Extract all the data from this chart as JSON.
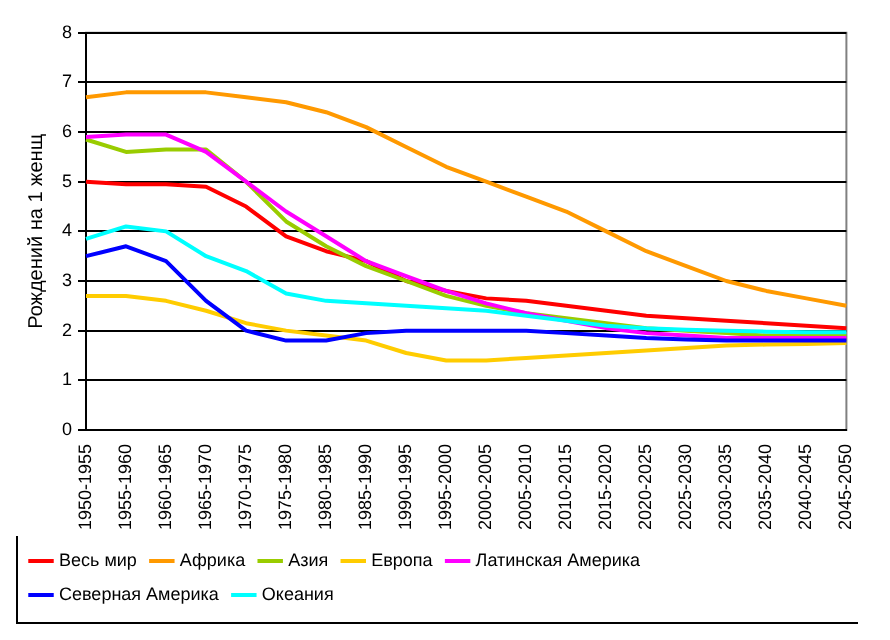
{
  "chart_data": {
    "type": "line",
    "ylabel": "Рождений на 1 женщ",
    "categories": [
      "1950-1955",
      "1955-1960",
      "1960-1965",
      "1965-1970",
      "1970-1975",
      "1975-1980",
      "1980-1985",
      "1985-1990",
      "1990-1995",
      "1995-2000",
      "2000-2005",
      "2005-2010",
      "2010-2015",
      "2015-2020",
      "2020-2025",
      "2025-2030",
      "2030-2035",
      "2035-2040",
      "2040-2045",
      "2045-2050"
    ],
    "series": [
      {
        "name": "Весь мир",
        "color": "#ff0000",
        "values": [
          5.0,
          4.95,
          4.95,
          4.9,
          4.5,
          3.9,
          3.6,
          3.4,
          3.0,
          2.8,
          2.65,
          2.6,
          2.5,
          2.4,
          2.3,
          2.25,
          2.2,
          2.15,
          2.1,
          2.05
        ]
      },
      {
        "name": "Африка",
        "color": "#ff9900",
        "values": [
          6.7,
          6.8,
          6.8,
          6.8,
          6.7,
          6.6,
          6.4,
          6.1,
          5.7,
          5.3,
          5.0,
          4.7,
          4.4,
          4.0,
          3.6,
          3.3,
          3.0,
          2.8,
          2.65,
          2.5
        ]
      },
      {
        "name": "Азия",
        "color": "#99cc00",
        "values": [
          5.85,
          5.6,
          5.65,
          5.65,
          5.0,
          4.2,
          3.7,
          3.3,
          3.0,
          2.7,
          2.5,
          2.35,
          2.25,
          2.15,
          2.05,
          2.0,
          1.95,
          1.9,
          1.9,
          1.9
        ]
      },
      {
        "name": "Европа",
        "color": "#ffcc00",
        "values": [
          2.7,
          2.7,
          2.6,
          2.4,
          2.15,
          2.0,
          1.9,
          1.8,
          1.55,
          1.4,
          1.4,
          1.45,
          1.5,
          1.55,
          1.6,
          1.65,
          1.7,
          1.72,
          1.73,
          1.75
        ]
      },
      {
        "name": "Латинская Америка",
        "color": "#ff00ff",
        "values": [
          5.9,
          5.95,
          5.95,
          5.6,
          5.0,
          4.4,
          3.9,
          3.4,
          3.1,
          2.8,
          2.55,
          2.35,
          2.2,
          2.05,
          1.95,
          1.9,
          1.85,
          1.85,
          1.85,
          1.85
        ]
      },
      {
        "name": "Северная Америка",
        "color": "#0000ff",
        "values": [
          3.5,
          3.7,
          3.4,
          2.6,
          2.0,
          1.8,
          1.8,
          1.95,
          2.0,
          2.0,
          2.0,
          2.0,
          1.95,
          1.9,
          1.85,
          1.82,
          1.8,
          1.8,
          1.8,
          1.8
        ]
      },
      {
        "name": "Океания",
        "color": "#00ffff",
        "values": [
          3.85,
          4.1,
          4.0,
          3.5,
          3.2,
          2.75,
          2.6,
          2.55,
          2.5,
          2.45,
          2.4,
          2.3,
          2.2,
          2.1,
          2.05,
          2.02,
          2.0,
          1.98,
          1.97,
          1.97
        ]
      }
    ],
    "ylim": [
      0,
      8
    ],
    "yticks": [
      0,
      1,
      2,
      3,
      4,
      5,
      6,
      7,
      8
    ],
    "grid": "y",
    "legend": "bottom",
    "marker": "none",
    "line_style": "solid"
  }
}
